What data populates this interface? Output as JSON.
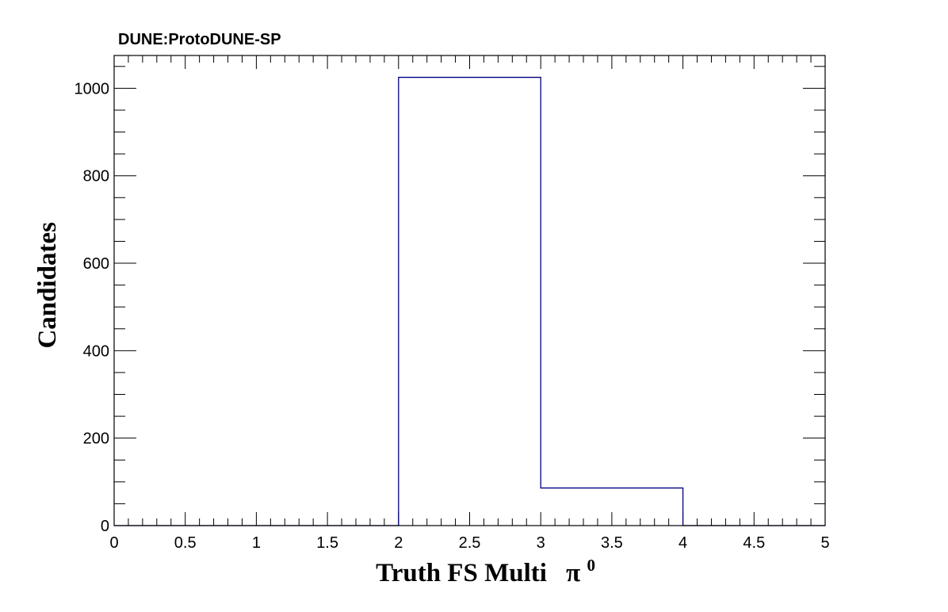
{
  "chart_data": {
    "type": "histogram",
    "title": "DUNE:ProtoDUNE-SP",
    "xlabel": "Truth FS Multi",
    "xlabel_symbol": "π",
    "xlabel_superscript": "0",
    "ylabel": "Candidates",
    "xlim": [
      0,
      5
    ],
    "ylim": [
      0,
      1075
    ],
    "x_ticks": [
      0,
      0.5,
      1,
      1.5,
      2,
      2.5,
      3,
      3.5,
      4,
      4.5,
      5
    ],
    "x_tick_labels": [
      "0",
      "0.5",
      "1",
      "1.5",
      "2",
      "2.5",
      "3",
      "3.5",
      "4",
      "4.5",
      "5"
    ],
    "y_ticks": [
      0,
      200,
      400,
      600,
      800,
      1000
    ],
    "y_tick_labels": [
      "0",
      "200",
      "400",
      "600",
      "800",
      "1000"
    ],
    "bins": [
      {
        "low": 0,
        "high": 1,
        "value": 0
      },
      {
        "low": 1,
        "high": 2,
        "value": 0
      },
      {
        "low": 2,
        "high": 3,
        "value": 1025
      },
      {
        "low": 3,
        "high": 4,
        "value": 86
      },
      {
        "low": 4,
        "high": 5,
        "value": 0
      }
    ],
    "line_color": "#000080",
    "grid": false
  }
}
